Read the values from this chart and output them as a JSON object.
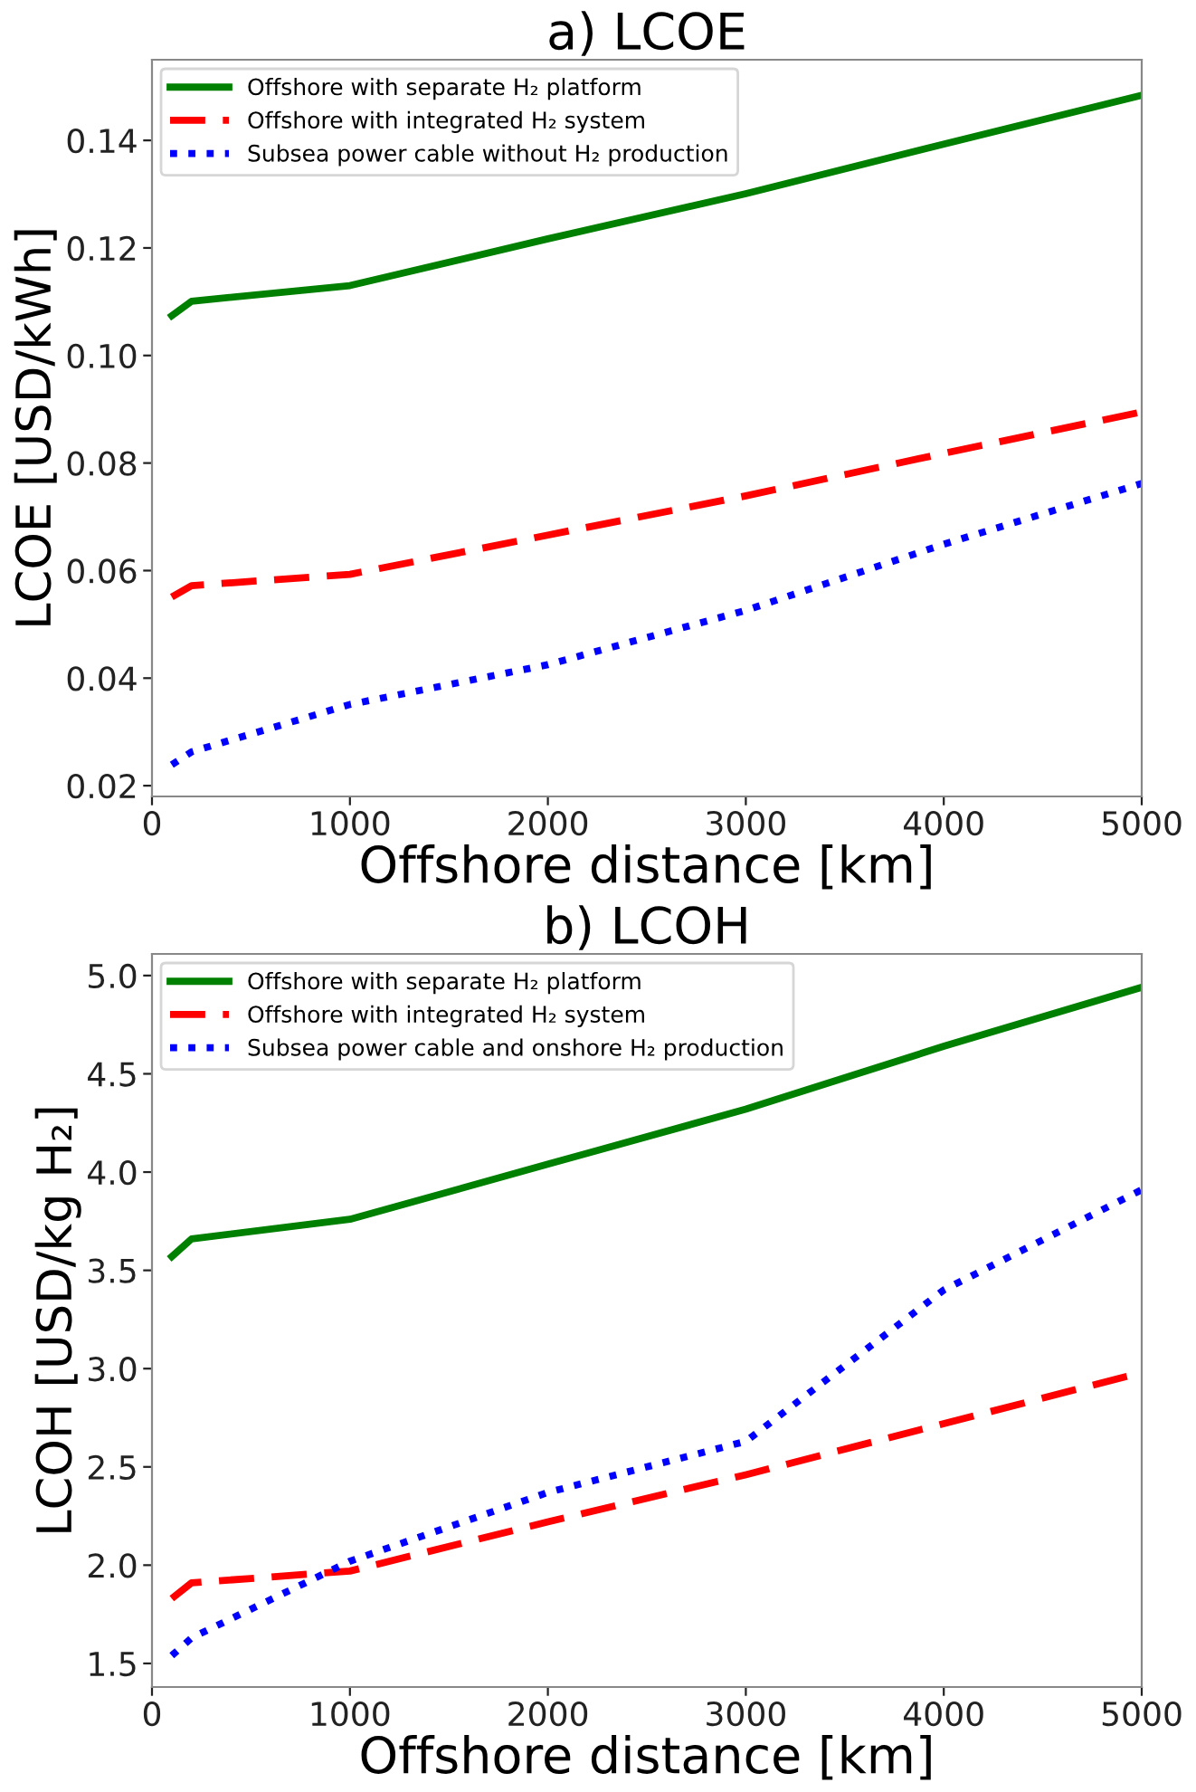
{
  "chart_data": [
    {
      "type": "line",
      "title": "a) LCOE",
      "xlabel": "Offshore distance [km]",
      "ylabel": "LCOE [USD/kWh]",
      "xlim": [
        0,
        5000
      ],
      "xticks": [
        0,
        1000,
        2000,
        3000,
        4000,
        5000
      ],
      "ylim": [
        0.018,
        0.155
      ],
      "yticks": [
        {
          "value": 0.02,
          "label": "0.02"
        },
        {
          "value": 0.04,
          "label": "0.04"
        },
        {
          "value": 0.06,
          "label": "0.06"
        },
        {
          "value": 0.08,
          "label": "0.08"
        },
        {
          "value": 0.1,
          "label": "0.10"
        },
        {
          "value": 0.12,
          "label": "0.12"
        },
        {
          "value": 0.14,
          "label": "0.14"
        }
      ],
      "legend": "top left",
      "grid": false,
      "x": [
        100,
        200,
        1000,
        2000,
        3000,
        4000,
        5000
      ],
      "series": [
        {
          "name": "Offshore with separate H₂ platform",
          "color": "#008000",
          "line_style": "solid",
          "values": [
            0.1074,
            0.1101,
            0.113,
            0.1217,
            0.1301,
            0.1393,
            0.1484
          ]
        },
        {
          "name": "Offshore with integrated H₂ system",
          "color": "#ff0000",
          "line_style": "dashed",
          "values": [
            0.0551,
            0.0572,
            0.0593,
            0.0666,
            0.0739,
            0.0818,
            0.0895
          ]
        },
        {
          "name": "Subsea power cable without H₂ production",
          "color": "#0000ff",
          "line_style": "dotted",
          "values": [
            0.0239,
            0.0263,
            0.0351,
            0.0425,
            0.0526,
            0.0649,
            0.0762
          ]
        }
      ]
    },
    {
      "type": "line",
      "title": "b) LCOH",
      "xlabel": "Offshore distance [km]",
      "ylabel": "LCOH [USD/kg H₂]",
      "xlim": [
        0,
        5000
      ],
      "xticks": [
        0,
        1000,
        2000,
        3000,
        4000,
        5000
      ],
      "ylim": [
        1.38,
        5.11
      ],
      "yticks": [
        {
          "value": 1.5,
          "label": "1.5"
        },
        {
          "value": 2.0,
          "label": "2.0"
        },
        {
          "value": 2.5,
          "label": "2.5"
        },
        {
          "value": 3.0,
          "label": "3.0"
        },
        {
          "value": 3.5,
          "label": "3.5"
        },
        {
          "value": 4.0,
          "label": "4.0"
        },
        {
          "value": 4.5,
          "label": "4.5"
        },
        {
          "value": 5.0,
          "label": "5.0"
        }
      ],
      "legend": "top left",
      "grid": false,
      "x": [
        100,
        200,
        1000,
        2000,
        3000,
        4000,
        5000
      ],
      "series": [
        {
          "name": "Offshore with separate H₂ platform",
          "color": "#008000",
          "line_style": "solid",
          "values": [
            3.57,
            3.66,
            3.76,
            4.04,
            4.32,
            4.64,
            4.94
          ]
        },
        {
          "name": "Offshore with integrated H₂ system",
          "color": "#ff0000",
          "line_style": "dashed",
          "values": [
            1.83,
            1.91,
            1.97,
            2.22,
            2.46,
            2.72,
            2.98
          ]
        },
        {
          "name": "Subsea power cable and onshore H₂ production",
          "color": "#0000ff",
          "line_style": "dotted",
          "values": [
            1.54,
            1.63,
            2.02,
            2.37,
            2.63,
            3.4,
            3.91
          ]
        }
      ]
    }
  ]
}
